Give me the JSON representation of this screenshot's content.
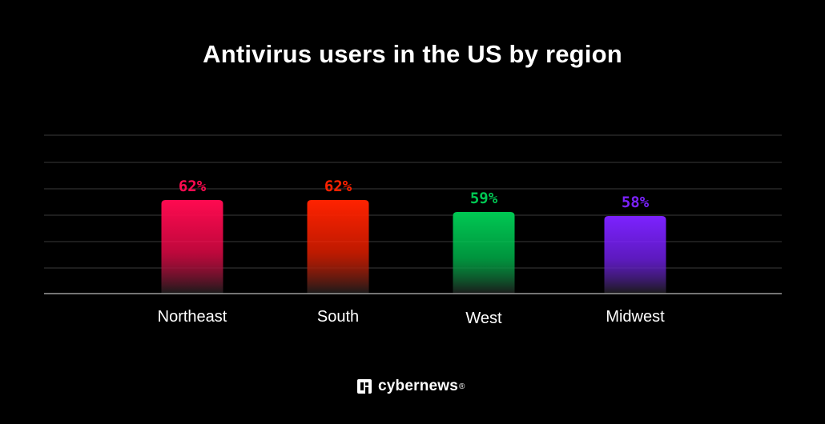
{
  "chart_data": {
    "type": "bar",
    "title": "Antivirus users in the US by region",
    "categories": [
      "Northeast",
      "South",
      "West",
      "Midwest"
    ],
    "values": [
      62,
      62,
      59,
      58
    ],
    "value_labels": [
      "62%",
      "62%",
      "59%",
      "58%"
    ],
    "unit": "%",
    "colors": [
      "#ff0a50",
      "#ff2200",
      "#00c853",
      "#7c22ff"
    ],
    "grid": true,
    "xlabel": "",
    "ylabel": ""
  },
  "brand": {
    "name": "cybernews",
    "reg": "®"
  }
}
